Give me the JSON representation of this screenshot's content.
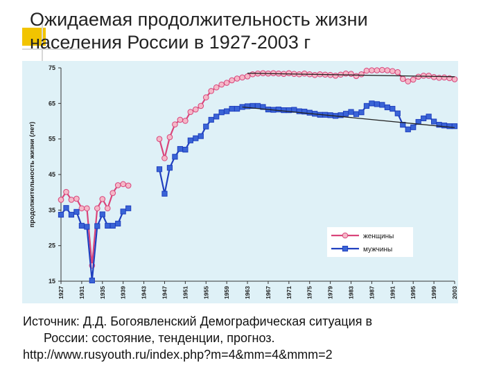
{
  "slide": {
    "title_line1": "Ожидаемая продолжительность жизни",
    "title_line2": "населения России в 1927-2003 г",
    "source_line1": "Источник: Д.Д. Богоявленский  Демографическая ситуация в",
    "source_line2": "России: состояние, тенденции, прогноз.",
    "source_line3": "http://www.rusyouth.ru/index.php?m=4&mm=4&mmm=2"
  },
  "chart_data": {
    "type": "line",
    "title": "",
    "xlabel": "",
    "ylabel": "продолжительность жизни (лет)",
    "ylim": [
      15,
      75
    ],
    "yticks": [
      15,
      25,
      35,
      45,
      55,
      65,
      75
    ],
    "xlim": [
      1927,
      2003
    ],
    "xticks": [
      1927,
      1931,
      1935,
      1939,
      1943,
      1947,
      1951,
      1955,
      1959,
      1963,
      1967,
      1971,
      1975,
      1979,
      1983,
      1987,
      1991,
      1995,
      1999,
      2003
    ],
    "grid": false,
    "legend_position": "bottom-right",
    "background_color": "#dff1f7",
    "series": [
      {
        "name": "женщины",
        "color": "#d9447a",
        "marker": "circle",
        "marker_fill": "#f4b8c8",
        "x": [
          1927,
          1928,
          1929,
          1930,
          1931,
          1932,
          1933,
          1934,
          1935,
          1936,
          1937,
          1938,
          1939,
          1940,
          1946,
          1947,
          1948,
          1949,
          1950,
          1951,
          1952,
          1953,
          1954,
          1955,
          1956,
          1957,
          1958,
          1959,
          1960,
          1961,
          1962,
          1963,
          1964,
          1965,
          1966,
          1967,
          1968,
          1969,
          1970,
          1971,
          1972,
          1973,
          1974,
          1975,
          1976,
          1977,
          1978,
          1979,
          1980,
          1981,
          1982,
          1983,
          1984,
          1985,
          1986,
          1987,
          1988,
          1989,
          1990,
          1991,
          1992,
          1993,
          1994,
          1995,
          1996,
          1997,
          1998,
          1999,
          2000,
          2001,
          2002,
          2003
        ],
        "values": [
          null,
          null,
          null,
          null,
          null,
          null,
          null,
          null,
          null,
          null,
          null,
          null,
          null,
          null,
          null,
          null,
          null,
          null,
          null,
          null,
          null,
          null,
          null,
          null,
          null,
          null,
          null,
          null,
          null,
          null,
          null,
          null,
          null,
          null,
          null,
          null,
          null,
          null,
          null,
          null,
          null,
          null,
          null,
          null,
          null,
          null,
          null,
          null,
          null,
          null,
          null,
          null,
          null,
          null,
          null,
          null,
          null,
          null,
          null,
          null,
          null,
          null,
          null,
          null,
          null,
          null,
          null,
          null,
          null,
          null,
          null,
          null
        ]
      },
      {
        "name": "мужчины",
        "color": "#1f3fbf",
        "marker": "square",
        "marker_fill": "#3a64d6",
        "x": [],
        "values": []
      }
    ],
    "trend_lines": [
      {
        "series": "женщины",
        "color": "#222222",
        "from": [
          1963,
          73.5
        ],
        "to": [
          2003,
          72.5
        ]
      },
      {
        "series": "мужчины",
        "color": "#222222",
        "from": [
          1962,
          64.0
        ],
        "to": [
          2003,
          58.2
        ]
      }
    ]
  }
}
